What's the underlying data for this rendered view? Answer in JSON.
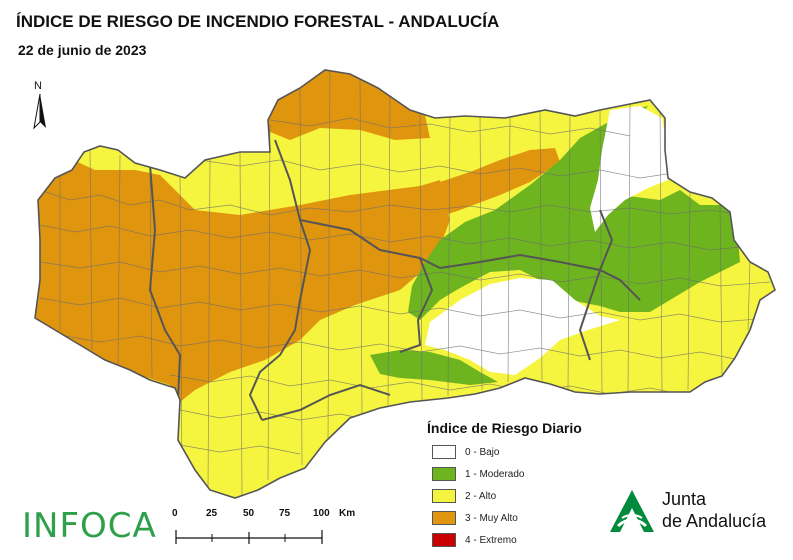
{
  "title": "ÍNDICE DE RIESGO DE INCENDIO FORESTAL - ANDALUCÍA",
  "date": "22 de junio de 2023",
  "north_label": "N",
  "legend": {
    "title": "Índice de Riesgo Diario",
    "items": [
      {
        "label": "0 - Bajo",
        "color": "#ffffff"
      },
      {
        "label": "1 - Moderado",
        "color": "#6db41f"
      },
      {
        "label": "2 - Alto",
        "color": "#f5f53f"
      },
      {
        "label": "3 - Muy Alto",
        "color": "#e0950f"
      },
      {
        "label": "4 - Extremo",
        "color": "#c80000"
      }
    ]
  },
  "scale": {
    "ticks": [
      "0",
      "25",
      "50",
      "75",
      "100"
    ],
    "unit": "Km"
  },
  "brand": {
    "infoca": "INFOCA",
    "junta_line1": "Junta",
    "junta_line2": "de Andalucía",
    "infoca_color": "#2ea04a",
    "junta_color": "#008a3c"
  },
  "colors": {
    "province_border": "#555555",
    "municipal_border": "#6e6e6e"
  }
}
